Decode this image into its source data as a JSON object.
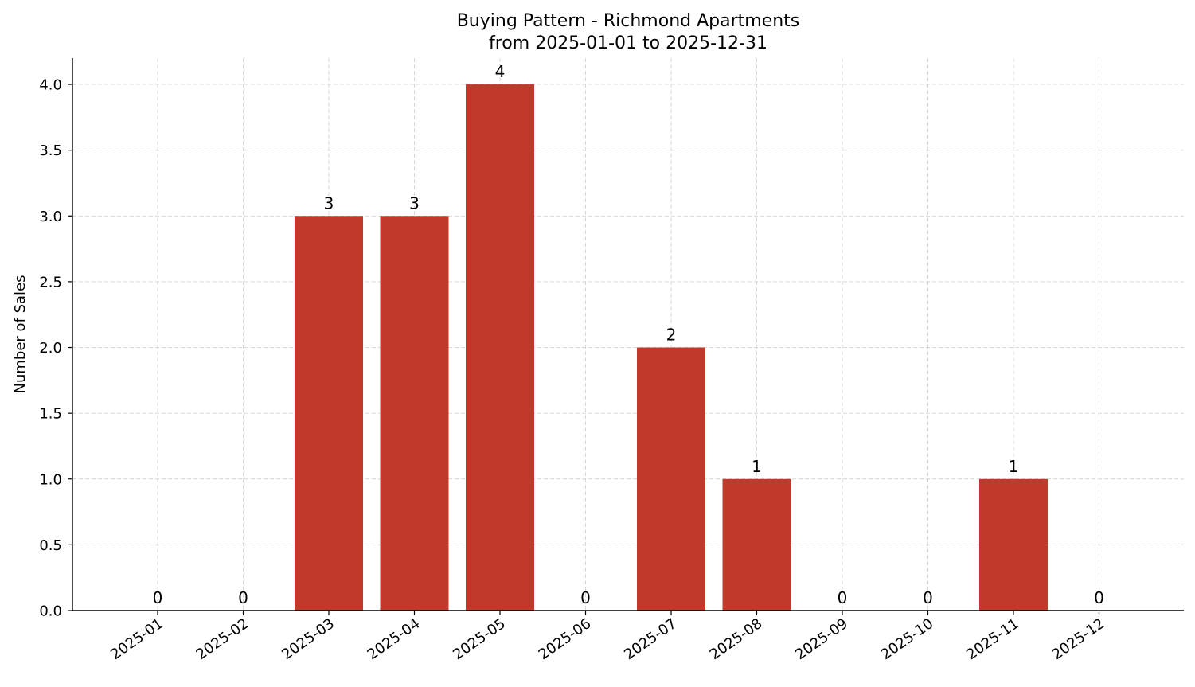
{
  "chart_data": {
    "type": "bar",
    "title_line1": "Buying Pattern - Richmond Apartments",
    "title_line2": "from 2025-01-01 to 2025-12-31",
    "xlabel": "",
    "ylabel": "Number of Sales",
    "categories": [
      "2025-01",
      "2025-02",
      "2025-03",
      "2025-04",
      "2025-05",
      "2025-06",
      "2025-07",
      "2025-08",
      "2025-09",
      "2025-10",
      "2025-11",
      "2025-12"
    ],
    "values": [
      0,
      0,
      3,
      3,
      4,
      0,
      2,
      1,
      0,
      0,
      1,
      0
    ],
    "data_labels": [
      "0",
      "0",
      "3",
      "3",
      "4",
      "0",
      "2",
      "1",
      "0",
      "0",
      "1",
      "0"
    ],
    "ylim": [
      0,
      4.2
    ],
    "yticks": [
      "0.0",
      "0.5",
      "1.0",
      "1.5",
      "2.0",
      "2.5",
      "3.0",
      "3.5",
      "4.0"
    ],
    "ytick_values": [
      0,
      0.5,
      1.0,
      1.5,
      2.0,
      2.5,
      3.0,
      3.5,
      4.0
    ],
    "bar_color": "#c0392b",
    "grid": true,
    "legend": false
  }
}
